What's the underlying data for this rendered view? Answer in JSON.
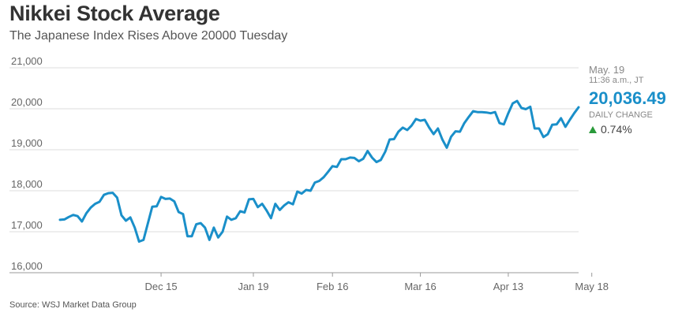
{
  "header": {
    "title": "Nikkei Stock Average",
    "subtitle": "The Japanese Index Rises Above 20000 Tuesday"
  },
  "readout": {
    "date": "May. 19",
    "time": "11:36 a.m., JT",
    "value": "20,036.49",
    "change_label": "DAILY CHANGE",
    "change": "0.74%",
    "change_direction": "up"
  },
  "footer": {
    "source": "Source: WSJ Market Data Group"
  },
  "colors": {
    "line": "#1a8fc9",
    "up": "#2a9a3a",
    "grid": "#dddddd"
  },
  "chart_data": {
    "type": "line",
    "title": "Nikkei Stock Average",
    "subtitle": "The Japanese Index Rises Above 20000 Tuesday",
    "xlabel": "",
    "ylabel": "",
    "ylim": [
      16000,
      21000
    ],
    "yticks": [
      16000,
      17000,
      18000,
      19000,
      20000,
      21000
    ],
    "ytick_labels": [
      "16,000",
      "17,000",
      "18,000",
      "19,000",
      "20,000",
      "21,000"
    ],
    "xtick_labels": [
      "Dec 15",
      "Jan 19",
      "Feb 16",
      "Mar 16",
      "Apr 13",
      "May 18"
    ],
    "xtick_index": [
      23,
      44,
      62,
      82,
      102,
      121
    ],
    "grid": "horizontal",
    "legend": "none",
    "series": [
      {
        "values": [
          17290,
          17300,
          17360,
          17410,
          17380,
          17250,
          17450,
          17590,
          17680,
          17730,
          17900,
          17940,
          17950,
          17830,
          17400,
          17270,
          17350,
          17100,
          16760,
          16800,
          17210,
          17610,
          17620,
          17850,
          17800,
          17810,
          17740,
          17480,
          17430,
          16890,
          16890,
          17180,
          17210,
          17100,
          16800,
          17100,
          16860,
          17000,
          17370,
          17290,
          17330,
          17500,
          17470,
          17790,
          17800,
          17600,
          17680,
          17520,
          17330,
          17680,
          17530,
          17640,
          17720,
          17670,
          17980,
          17930,
          18020,
          18000,
          18200,
          18240,
          18330,
          18460,
          18600,
          18580,
          18770,
          18770,
          18810,
          18800,
          18720,
          18780,
          18970,
          18810,
          18700,
          18750,
          18950,
          19250,
          19260,
          19440,
          19540,
          19480,
          19590,
          19750,
          19710,
          19730,
          19540,
          19380,
          19520,
          19250,
          19050,
          19320,
          19450,
          19440,
          19650,
          19800,
          19940,
          19920,
          19920,
          19910,
          19890,
          19920,
          19650,
          19620,
          19890,
          20130,
          20190,
          20020,
          19990,
          20050,
          19520,
          19520,
          19310,
          19380,
          19610,
          19620,
          19770,
          19560,
          19730,
          19890,
          20036
        ]
      }
    ]
  }
}
